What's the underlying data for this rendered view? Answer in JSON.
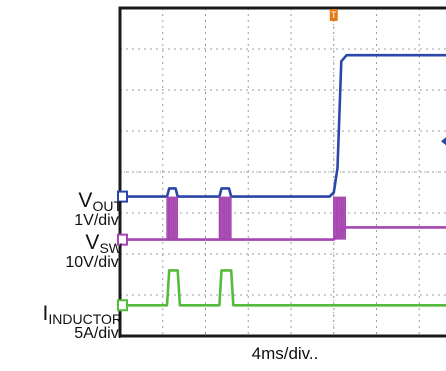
{
  "chart_data": {
    "type": "line",
    "title": "",
    "xlabel": "4ms/div..",
    "x_unit": "ms",
    "xlim": [
      -20,
      10.5
    ],
    "ylim": [
      0,
      8
    ],
    "trigger_marker": "T",
    "trigger_x": 0,
    "trigger_level_y": 4.75,
    "grid": true,
    "colors": {
      "vout": "#2a46a8",
      "vsw": "#a646b0",
      "iind": "#55bb3c",
      "trigger": "#e27c1a",
      "grid": "#9aa0a0",
      "frame": "#1a1a1a"
    },
    "series": [
      {
        "key": "vout",
        "label_main": "V",
        "label_sub": "OUT",
        "scale": "1V/div.",
        "baseline_div": 3.4,
        "x": [
          -20,
          -15.6,
          -15.4,
          -14.8,
          -14.6,
          -10.7,
          -10.5,
          -9.8,
          -9.6,
          -0.4,
          0,
          0.35,
          0.7,
          1.2,
          10.5
        ],
        "y": [
          3.4,
          3.4,
          3.6,
          3.6,
          3.4,
          3.4,
          3.6,
          3.6,
          3.4,
          3.4,
          3.5,
          4.1,
          6.7,
          6.85,
          6.85
        ]
      },
      {
        "key": "vsw",
        "label_main": "V",
        "label_sub": "SW",
        "scale": "10V/div.",
        "baseline_div": 2.35,
        "burst_ranges": [
          [
            -15.6,
            -14.6
          ],
          [
            -10.7,
            -9.6
          ],
          [
            0,
            1.1
          ]
        ],
        "burst_high_div": 3.4,
        "level_after_div": 2.65,
        "x": [
          -20,
          -15.6,
          -14.6,
          -10.7,
          -9.6,
          0,
          1.1,
          10.5
        ],
        "y": [
          2.35,
          2.35,
          2.35,
          2.35,
          2.35,
          2.35,
          2.65,
          2.65
        ]
      },
      {
        "key": "iind",
        "label_main": "I",
        "label_sub": "INDUCTOR",
        "scale": "5A/div.",
        "baseline_div": 0.75,
        "x": [
          -20,
          -15.6,
          -15.4,
          -14.6,
          -14.4,
          -10.7,
          -10.5,
          -9.6,
          -9.4,
          10.5
        ],
        "y": [
          0.75,
          0.75,
          1.6,
          1.6,
          0.75,
          0.75,
          1.6,
          1.6,
          0.75,
          0.75
        ]
      }
    ]
  }
}
